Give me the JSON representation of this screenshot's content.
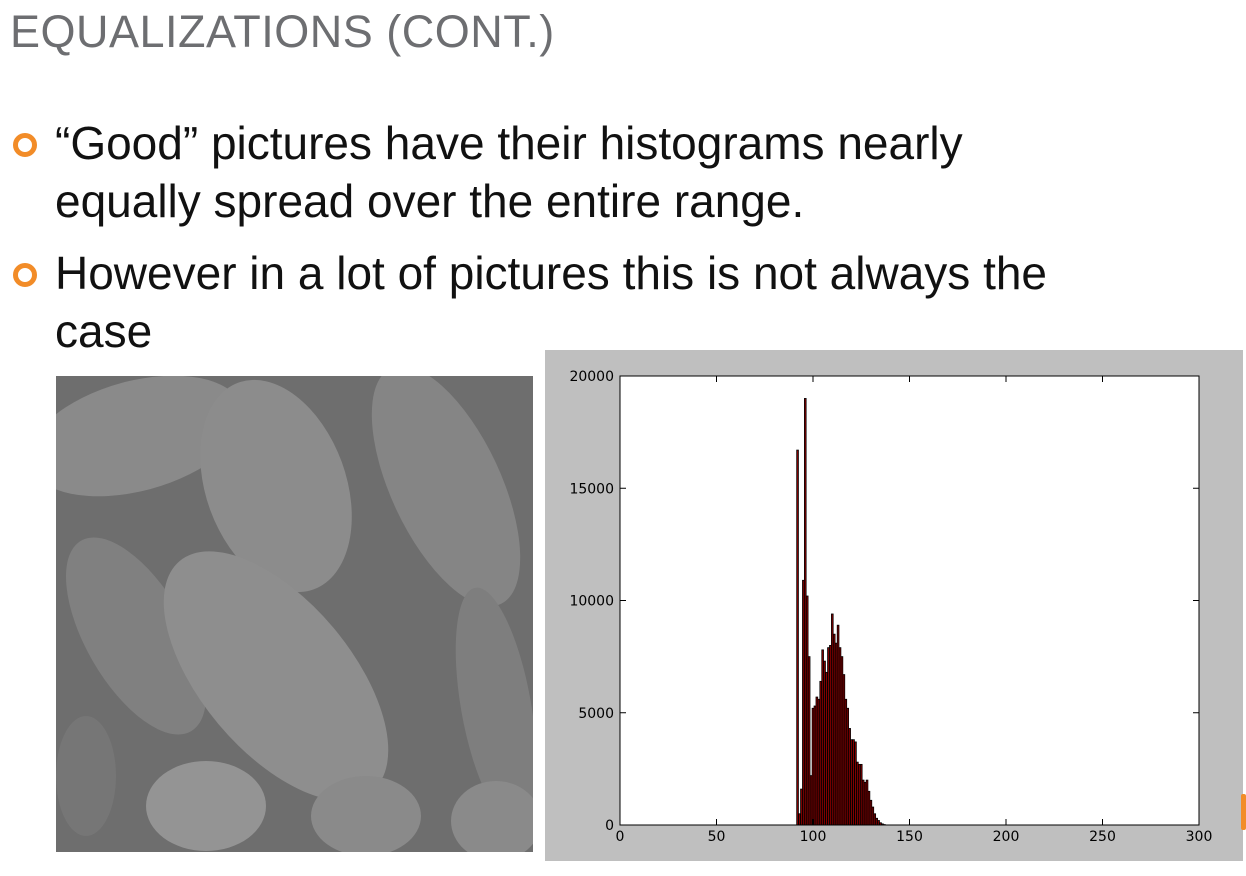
{
  "slide": {
    "title": "EQUALIZATIONS (CONT.)",
    "bullets": [
      {
        "lines": [
          "“Good” pictures have their histograms nearly",
          "equally spread over the entire range."
        ]
      },
      {
        "lines": [
          "However in a lot of pictures this is not always the",
          "case"
        ]
      }
    ]
  },
  "colors": {
    "title": "#6d6e71",
    "bullet_marker": "#f28c28",
    "bar_fill": "#8b0000",
    "plot_background": "#bfbfbf"
  },
  "chart_data": {
    "type": "bar",
    "title": "",
    "xlabel": "",
    "ylabel": "",
    "xlim": [
      0,
      300
    ],
    "ylim": [
      0,
      20000
    ],
    "x_ticks": [
      "0",
      "50",
      "100",
      "150",
      "200",
      "250",
      "300"
    ],
    "y_ticks": [
      "0",
      "5000",
      "10000",
      "15000",
      "20000"
    ],
    "grid": false,
    "series": [
      {
        "x": [
          92,
          93,
          94,
          95,
          96,
          97,
          98,
          99,
          100,
          101,
          102,
          103,
          104,
          105,
          106,
          107,
          108,
          109,
          110,
          111,
          112,
          113,
          114,
          115,
          116,
          117,
          118,
          119,
          120,
          121,
          122,
          123,
          124,
          125,
          126,
          127,
          128,
          129,
          130,
          131,
          132,
          133,
          134,
          135,
          136,
          137
        ],
        "values": [
          16700,
          500,
          1600,
          10900,
          19000,
          10200,
          7500,
          2200,
          5200,
          5300,
          5700,
          5600,
          6400,
          7800,
          7300,
          6800,
          7900,
          8000,
          9400,
          8500,
          8100,
          8900,
          7900,
          7500,
          6700,
          5600,
          5200,
          4300,
          3800,
          3800,
          3700,
          2800,
          2700,
          2700,
          2000,
          1900,
          2000,
          1500,
          1100,
          800,
          500,
          300,
          200,
          100,
          50,
          20
        ]
      }
    ]
  }
}
